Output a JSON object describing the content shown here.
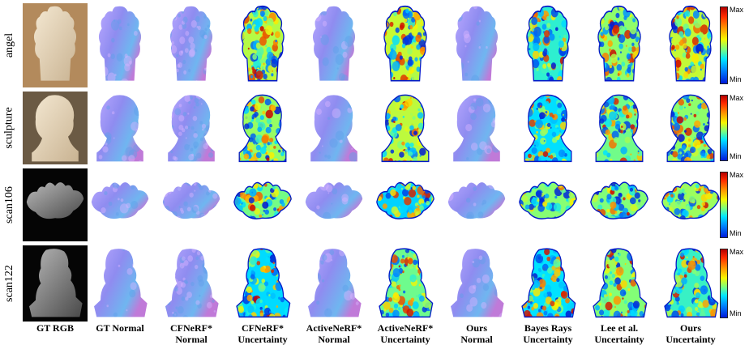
{
  "row_labels": [
    "angel",
    "sculpture",
    "scan106",
    "scan122"
  ],
  "column_labels": [
    {
      "line1": "GT RGB",
      "line2": ""
    },
    {
      "line1": "GT Normal",
      "line2": ""
    },
    {
      "line1": "CFNeRF*",
      "line2": "Normal"
    },
    {
      "line1": "CFNeRF*",
      "line2": "Uncertainty"
    },
    {
      "line1": "ActiveNeRF*",
      "line2": "Normal"
    },
    {
      "line1": "ActiveNeRF*",
      "line2": "Uncertainty"
    },
    {
      "line1": "Ours",
      "line2": "Normal"
    },
    {
      "line1": "Bayes Rays",
      "line2": "Uncertainty"
    },
    {
      "line1": "Lee et al.",
      "line2": "Uncertainty"
    },
    {
      "line1": "Ours",
      "line2": "Uncertainty"
    }
  ],
  "colorbar": {
    "max_label": "Max",
    "min_label": "Min"
  },
  "colors": {
    "normal_map": "#8f8cf0",
    "uncertainty_high": "#e02020",
    "uncertainty_low": "#0010c8"
  }
}
